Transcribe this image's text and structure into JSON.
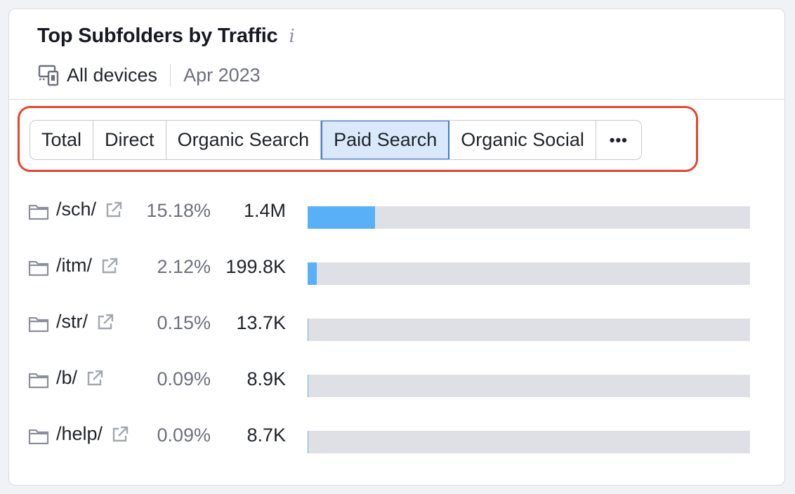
{
  "widget": {
    "title": "Top Subfolders by Traffic",
    "info_icon": "info-icon",
    "devices_label": "All devices",
    "devices_icon": "devices-icon",
    "date": "Apr 2023"
  },
  "tabs": [
    {
      "label": "Total",
      "active": false
    },
    {
      "label": "Direct",
      "active": false
    },
    {
      "label": "Organic Search",
      "active": false
    },
    {
      "label": "Paid Search",
      "active": true
    },
    {
      "label": "Organic Social",
      "active": false
    },
    {
      "label": "•••",
      "active": false
    }
  ],
  "colors": {
    "highlight_outline": "#e5452b",
    "active_tab_bg": "#d9e9fb",
    "bar_fill": "#5ab0f7",
    "bar_track": "#dfe0e6"
  },
  "subfolders": [
    {
      "path": "/sch/",
      "share": "15.18%",
      "traffic": "1.4M",
      "bar_fraction": 0.1518
    },
    {
      "path": "/itm/",
      "share": "2.12%",
      "traffic": "199.8K",
      "bar_fraction": 0.0212
    },
    {
      "path": "/str/",
      "share": "0.15%",
      "traffic": "13.7K",
      "bar_fraction": 0.0015
    },
    {
      "path": "/b/",
      "share": "0.09%",
      "traffic": "8.9K",
      "bar_fraction": 0.0009
    },
    {
      "path": "/help/",
      "share": "0.09%",
      "traffic": "8.7K",
      "bar_fraction": 0.0009
    }
  ]
}
